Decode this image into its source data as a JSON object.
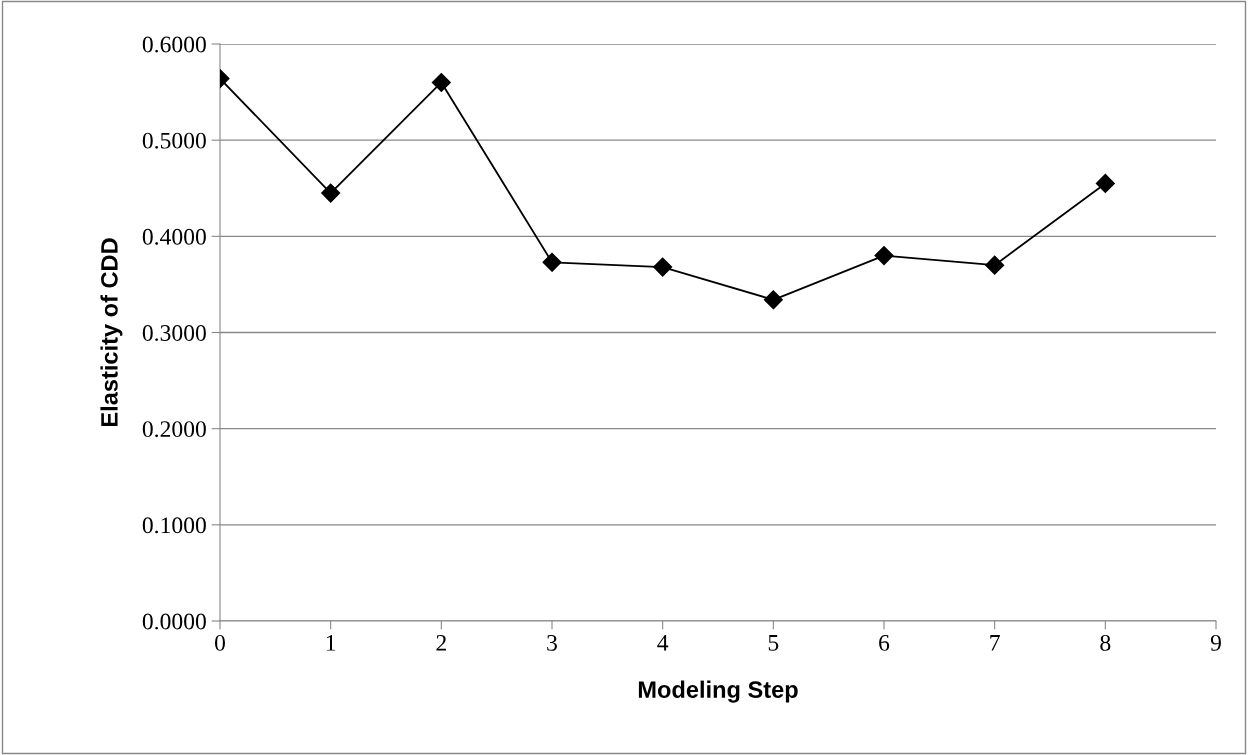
{
  "chart_data": {
    "type": "line",
    "xlabel": "Modeling Step",
    "ylabel": "Elasticity of CDD",
    "x": [
      0,
      1,
      2,
      3,
      4,
      5,
      6,
      7,
      8
    ],
    "series": [
      {
        "color": "#000000",
        "values": [
          0.564,
          0.445,
          0.56,
          0.373,
          0.368,
          0.334,
          0.38,
          0.37,
          0.455
        ]
      }
    ],
    "xlim": [
      0,
      9
    ],
    "xticks": [
      0,
      1,
      2,
      3,
      4,
      5,
      6,
      7,
      8,
      9
    ],
    "ylim": [
      0,
      0.6
    ],
    "yticks": [
      {
        "value": 0,
        "label": "0.0000"
      },
      {
        "value": 0.1,
        "label": "0.1000"
      },
      {
        "value": 0.2,
        "label": "0.2000"
      },
      {
        "value": 0.3,
        "label": "0.3000"
      },
      {
        "value": 0.4,
        "label": "0.4000"
      },
      {
        "value": 0.5,
        "label": "0.5000"
      },
      {
        "value": 0.6,
        "label": "0.6000"
      }
    ],
    "grid": "y",
    "marker": "diamond",
    "line_style": "solid"
  }
}
